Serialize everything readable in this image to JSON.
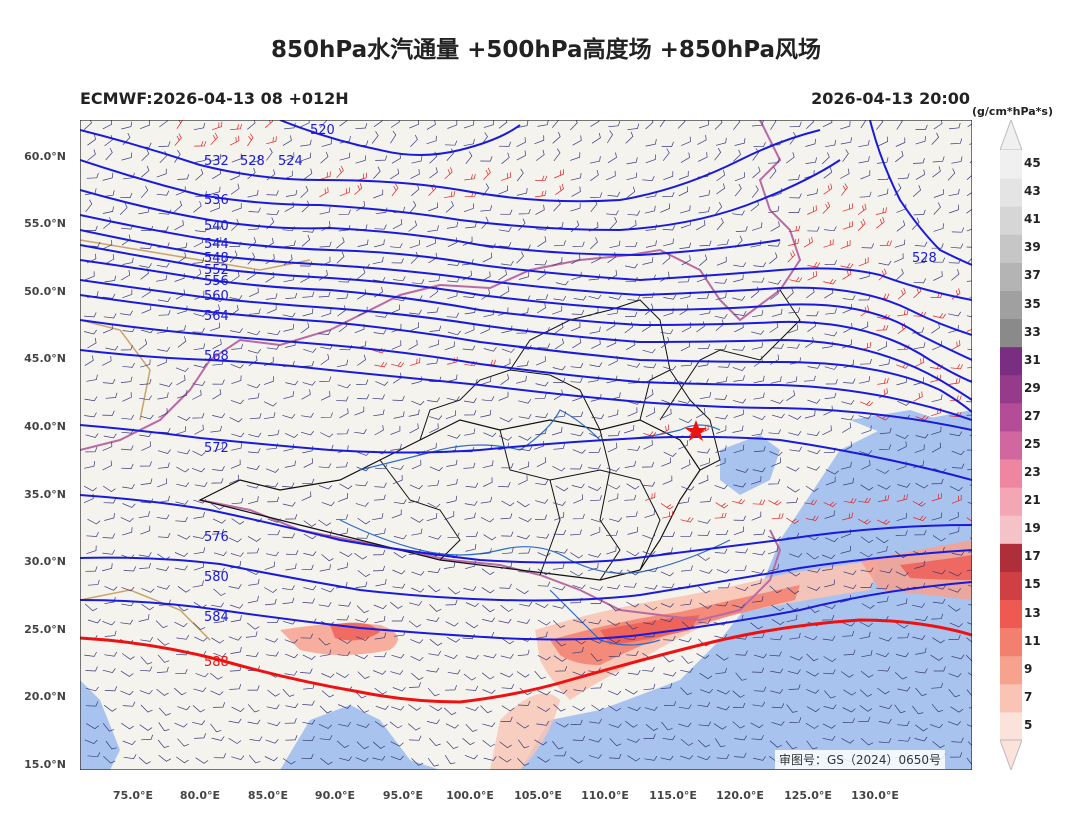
{
  "title": "850hPa水汽通量 +500hPa高度场 +850hPa风场",
  "model_run": "ECMWF:2026-04-13 08 +012H",
  "valid_time": "2026-04-13 20:00",
  "colorbar": {
    "unit": "(g/cm*hPa*s)",
    "ticks": [
      "5",
      "7",
      "9",
      "11",
      "13",
      "15",
      "17",
      "19",
      "21",
      "23",
      "25",
      "27",
      "29",
      "31",
      "33",
      "35",
      "37",
      "39",
      "41",
      "43",
      "45"
    ],
    "colors": [
      "#fbe2da",
      "#f9c4b4",
      "#f7a18f",
      "#f3806e",
      "#ee5a52",
      "#cf3f44",
      "#ae2f3a",
      "#f5c2c8",
      "#f3a6b4",
      "#ee86a2",
      "#d2679f",
      "#b54c97",
      "#963a8c",
      "#7a2e82",
      "#8a8a8a",
      "#a0a0a0",
      "#b4b4b4",
      "#c6c6c6",
      "#d6d6d6",
      "#e4e4e4",
      "#f0f0f0"
    ]
  },
  "lat_labels": [
    "60.0°N",
    "55.0°N",
    "50.0°N",
    "45.0°N",
    "40.0°N",
    "35.0°N",
    "30.0°N",
    "25.0°N",
    "20.0°N",
    "15.0°N"
  ],
  "lon_labels": [
    "75.0°E",
    "80.0°E",
    "85.0°E",
    "90.0°E",
    "95.0°E",
    "100.0°E",
    "105.0°E",
    "110.0°E",
    "115.0°E",
    "120.0°E",
    "125.0°E",
    "130.0°E"
  ],
  "contour_labels": [
    "520",
    "524",
    "528",
    "532",
    "536",
    "540",
    "544",
    "548",
    "552",
    "556",
    "560",
    "564",
    "568",
    "572",
    "576",
    "580",
    "584",
    "588",
    "528"
  ],
  "colors": {
    "contour": "#1a1adc",
    "contour_588": "#ee1111",
    "land": "#f4f3ee",
    "ocean": "#a9c3ef",
    "wind_barb_normal": "#3a3a7a",
    "wind_barb_strong": "#e02020",
    "border": "#111111",
    "river": "#2d6cc4"
  },
  "icons": {
    "capital_marker": "red-star-icon"
  },
  "approval_number": "审图号：GS（2024）0650号"
}
